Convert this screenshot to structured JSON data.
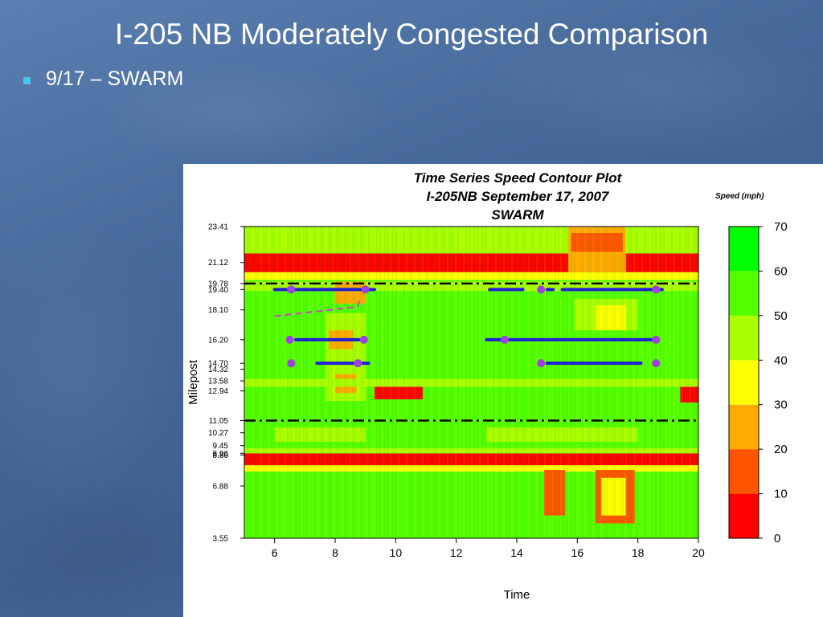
{
  "slide": {
    "title": "I-205 NB Moderately Congested Comparison",
    "bullet": "9/17 – SWARM"
  },
  "chart_data": {
    "type": "heatmap",
    "title_lines": [
      "Time Series Speed Contour Plot",
      "I-205NB September 17, 2007",
      "SWARM"
    ],
    "xlabel": "Time",
    "ylabel": "Milepost",
    "xlim": [
      5,
      20
    ],
    "ylim": [
      3.55,
      23.41
    ],
    "x_ticks": [
      6,
      8,
      10,
      12,
      14,
      16,
      18,
      20
    ],
    "y_ticks": [
      23.41,
      21.12,
      19.78,
      19.4,
      18.1,
      16.2,
      14.7,
      14.32,
      13.58,
      12.94,
      11.05,
      10.27,
      9.45,
      8.96,
      8.86,
      6.88,
      3.55
    ],
    "y_tick_labels": [
      "23.41",
      "21.12",
      "19.78",
      "19.40",
      "18.10",
      "16.20",
      "14.70",
      "14.32",
      "13.58",
      "12.94",
      "11.05",
      "10.27",
      "9.45",
      "8.96",
      "8.86",
      "6.88",
      "3.55"
    ],
    "colorbar": {
      "title": "Speed (mph)",
      "ticks": [
        0,
        10,
        20,
        30,
        40,
        50,
        60,
        70
      ],
      "bins": [
        {
          "from": 0,
          "to": 10,
          "color": "#ff0000"
        },
        {
          "from": 10,
          "to": 20,
          "color": "#ff5500"
        },
        {
          "from": 20,
          "to": 30,
          "color": "#ffaa00"
        },
        {
          "from": 30,
          "to": 40,
          "color": "#ffff00"
        },
        {
          "from": 40,
          "to": 50,
          "color": "#aaff00"
        },
        {
          "from": 50,
          "to": 60,
          "color": "#55ff00"
        },
        {
          "from": 60,
          "to": 70,
          "color": "#00ff00"
        }
      ]
    },
    "background_speed": 55,
    "speed_regions": [
      {
        "x": [
          5,
          20
        ],
        "y": [
          20.5,
          21.7
        ],
        "speed": 6
      },
      {
        "x": [
          5,
          20
        ],
        "y": [
          21.7,
          23.41
        ],
        "speed": 45
      },
      {
        "x": [
          5,
          20
        ],
        "y": [
          20.0,
          20.5
        ],
        "speed": 32
      },
      {
        "x": [
          15.7,
          17.6
        ],
        "y": [
          20.5,
          23.41
        ],
        "speed": 25
      },
      {
        "x": [
          15.8,
          17.5
        ],
        "y": [
          21.8,
          23.0
        ],
        "speed": 12
      },
      {
        "x": [
          5,
          20
        ],
        "y": [
          8.2,
          8.96
        ],
        "speed": 5
      },
      {
        "x": [
          5,
          20
        ],
        "y": [
          7.8,
          8.2
        ],
        "speed": 33
      },
      {
        "x": [
          5,
          20
        ],
        "y": [
          8.96,
          9.3
        ],
        "speed": 42
      },
      {
        "x": [
          14.9,
          15.6
        ],
        "y": [
          5.0,
          7.9
        ],
        "speed": 15
      },
      {
        "x": [
          16.6,
          17.9
        ],
        "y": [
          4.5,
          7.9
        ],
        "speed": 15
      },
      {
        "x": [
          16.8,
          17.6
        ],
        "y": [
          5.0,
          7.4
        ],
        "speed": 30
      },
      {
        "x": [
          9.3,
          10.9
        ],
        "y": [
          12.4,
          13.3
        ],
        "speed": 5
      },
      {
        "x": [
          19.4,
          20
        ],
        "y": [
          12.2,
          13.3
        ],
        "speed": 5
      },
      {
        "x": [
          7.7,
          9.0
        ],
        "y": [
          12.3,
          17.9
        ],
        "speed": 42
      },
      {
        "x": [
          7.8,
          8.6
        ],
        "y": [
          15.6,
          16.8
        ],
        "speed": 25
      },
      {
        "x": [
          8.0,
          8.7
        ],
        "y": [
          12.8,
          14.0
        ],
        "speed": 25
      },
      {
        "x": [
          15.9,
          18.0
        ],
        "y": [
          16.8,
          18.8
        ],
        "speed": 45
      },
      {
        "x": [
          16.6,
          17.6
        ],
        "y": [
          16.8,
          18.4
        ],
        "speed": 32
      },
      {
        "x": [
          5,
          20
        ],
        "y": [
          13.2,
          13.7
        ],
        "speed": 42
      },
      {
        "x": [
          6.0,
          9.0
        ],
        "y": [
          9.7,
          10.6
        ],
        "speed": 40
      },
      {
        "x": [
          13.0,
          18.0
        ],
        "y": [
          9.7,
          10.6
        ],
        "speed": 40
      },
      {
        "x": [
          5,
          20
        ],
        "y": [
          19.3,
          19.9
        ],
        "speed": 45
      },
      {
        "x": [
          8.0,
          9.0
        ],
        "y": [
          18.5,
          19.9
        ],
        "speed": 28
      }
    ],
    "reference_lines": [
      {
        "milepost": 19.78,
        "style": "dash-dot",
        "color": "#000000"
      },
      {
        "milepost": 11.05,
        "style": "dash-dot",
        "color": "#000000"
      }
    ],
    "queue_segments": [
      {
        "milepost": 19.4,
        "x": [
          6.0,
          9.3
        ],
        "color": "#1f1fd6"
      },
      {
        "milepost": 19.4,
        "x": [
          13.1,
          14.2
        ],
        "color": "#1f1fd6"
      },
      {
        "milepost": 19.4,
        "x": [
          15.0,
          15.2
        ],
        "color": "#1f1fd6"
      },
      {
        "milepost": 19.4,
        "x": [
          15.5,
          18.8
        ],
        "color": "#1f1fd6"
      },
      {
        "milepost": 16.2,
        "x": [
          6.7,
          9.0
        ],
        "color": "#1f1fd6"
      },
      {
        "milepost": 16.2,
        "x": [
          13.0,
          18.5
        ],
        "color": "#1f1fd6"
      },
      {
        "milepost": 14.7,
        "x": [
          7.4,
          9.1
        ],
        "color": "#1f1fd6"
      },
      {
        "milepost": 14.7,
        "x": [
          15.0,
          18.1
        ],
        "color": "#1f1fd6"
      }
    ],
    "markers": [
      {
        "x": 6.55,
        "milepost": 19.4
      },
      {
        "x": 9.0,
        "milepost": 19.4
      },
      {
        "x": 14.8,
        "milepost": 19.4
      },
      {
        "x": 18.6,
        "milepost": 19.4
      },
      {
        "x": 6.5,
        "milepost": 16.2
      },
      {
        "x": 8.95,
        "milepost": 16.2
      },
      {
        "x": 13.6,
        "milepost": 16.2
      },
      {
        "x": 18.6,
        "milepost": 16.2
      },
      {
        "x": 6.55,
        "milepost": 14.7
      },
      {
        "x": 8.75,
        "milepost": 14.7
      },
      {
        "x": 14.8,
        "milepost": 14.7
      },
      {
        "x": 18.6,
        "milepost": 14.7
      }
    ],
    "marker_color": "#a040e0",
    "trajectory": {
      "points": [
        [
          6.0,
          17.7
        ],
        [
          8.75,
          18.3
        ],
        [
          8.8,
          18.7
        ]
      ],
      "color": "#d040d0",
      "style": "dashed"
    }
  }
}
